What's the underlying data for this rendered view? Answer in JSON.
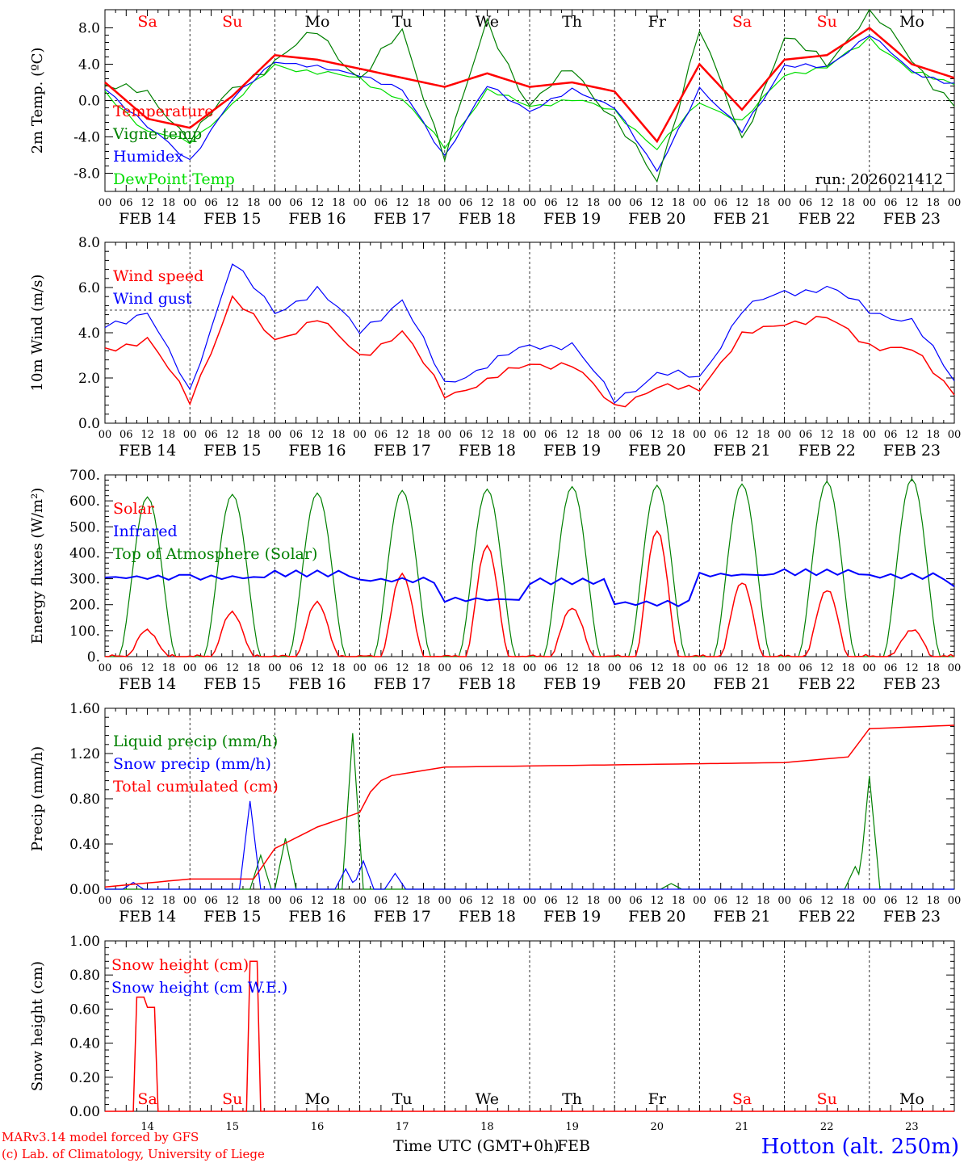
{
  "meta": {
    "model": "MARv3.14 model forced by GFS",
    "credit": "(c) Lab. of Climatology, University of Liege",
    "xlabel": "Time UTC (GMT+0h)",
    "month": "FEB",
    "station": "Hotton (alt. 250m)"
  },
  "colors": {
    "red": "#ff0000",
    "green": "#008000",
    "blue": "#0000ff",
    "lime": "#00dd00",
    "black": "#000000"
  },
  "days": {
    "weekdays": [
      "Sa",
      "Su",
      "Mo",
      "Tu",
      "We",
      "Th",
      "Fr",
      "Sa",
      "Su",
      "Mo"
    ],
    "weekend": [
      true,
      true,
      false,
      false,
      false,
      false,
      false,
      true,
      true,
      false
    ],
    "dates": [
      "FEB 14",
      "FEB 15",
      "FEB 16",
      "FEB 17",
      "FEB 18",
      "FEB 19",
      "FEB 20",
      "FEB 21",
      "FEB 22",
      "FEB 23"
    ],
    "day_numbers": [
      "14",
      "15",
      "16",
      "17",
      "18",
      "19",
      "20",
      "21",
      "22",
      "23"
    ],
    "hour_ticks": [
      "00",
      "06",
      "12",
      "18"
    ],
    "final_tick": "00"
  },
  "chart_data": [
    {
      "type": "line",
      "name": "temperature",
      "ylabel": "2m Temp. (ºC)",
      "ylim": [
        -10,
        10
      ],
      "yticks": [
        "8.0",
        "4.0",
        "0.0",
        "-4.0",
        "-8.0"
      ],
      "ytick_values": [
        8,
        4,
        0,
        -4,
        -8
      ],
      "reference_line": 0,
      "annotation": "run: 2026021412",
      "x_hours": [
        0,
        12,
        24,
        36,
        48,
        60,
        72,
        84,
        96,
        108,
        120,
        132,
        144,
        156,
        168,
        180,
        192,
        204,
        216,
        228,
        240
      ],
      "series": [
        {
          "name": "Temperature",
          "color": "#ff0000",
          "width": 2.5,
          "values": [
            2,
            -2,
            -3,
            0.5,
            5,
            4.5,
            3.5,
            2.5,
            1.5,
            3,
            1.5,
            2,
            1,
            -4.5,
            4,
            -1,
            4.5,
            5,
            8,
            4,
            2.5
          ]
        },
        {
          "name": "Vigne temp",
          "color": "#008000",
          "width": 1.2,
          "values": [
            2,
            0.5,
            -4,
            1,
            4.5,
            7.5,
            2.5,
            7.5,
            -6,
            8.5,
            -0.5,
            3.5,
            -2,
            -9,
            8,
            -4.5,
            7,
            4,
            10,
            4.5,
            -0.5
          ]
        },
        {
          "name": "Humidex",
          "color": "#0000ff",
          "width": 1.2,
          "values": [
            1.5,
            -3,
            -6.5,
            0,
            4.5,
            3.5,
            3,
            1,
            -6,
            1.5,
            -1,
            1,
            -0.5,
            -8,
            1.5,
            -3.5,
            4,
            3.5,
            7.5,
            3,
            2
          ]
        },
        {
          "name": "DewPoint Temp",
          "color": "#00dd00",
          "width": 1.2,
          "values": [
            1,
            -3.5,
            -4.5,
            -0.5,
            4,
            3,
            2.5,
            0,
            -5,
            1,
            -0.5,
            0,
            -1,
            -5.5,
            0,
            -2.5,
            3,
            3.5,
            7,
            3,
            2
          ]
        }
      ]
    },
    {
      "type": "line",
      "name": "wind",
      "ylabel": "10m Wind (m/s)",
      "ylim": [
        0,
        8
      ],
      "yticks": [
        "8.0",
        "6.0",
        "4.0",
        "2.0",
        "0.0"
      ],
      "ytick_values": [
        8,
        6,
        4,
        2,
        0
      ],
      "reference_line": 5,
      "x_hours": [
        0,
        12,
        24,
        36,
        48,
        60,
        72,
        84,
        96,
        108,
        120,
        132,
        144,
        156,
        168,
        180,
        192,
        204,
        216,
        228,
        240
      ],
      "series": [
        {
          "name": "Wind speed",
          "color": "#ff0000",
          "width": 1.5,
          "values": [
            3.3,
            3.7,
            1,
            5.5,
            3.7,
            4.6,
            3,
            4,
            1.3,
            1.8,
            2.7,
            2.5,
            0.8,
            1.5,
            1.6,
            3.8,
            4.5,
            4.6,
            3.5,
            3.2,
            1.4
          ]
        },
        {
          "name": "Wind gust",
          "color": "#0000ff",
          "width": 1.2,
          "values": [
            4.2,
            5,
            1.3,
            7.2,
            4.8,
            6,
            4,
            5.5,
            1.7,
            2.6,
            3.4,
            3.5,
            1,
            2.2,
            2,
            5,
            5.8,
            6,
            5,
            4.5,
            1.9
          ]
        }
      ]
    },
    {
      "type": "line",
      "name": "energy",
      "ylabel": "Energy fluxes (W/m²)",
      "ylim": [
        0,
        700
      ],
      "yticks": [
        "700.",
        "600.",
        "500.",
        "400.",
        "300.",
        "200.",
        "100.",
        "0."
      ],
      "ytick_values": [
        700,
        600,
        500,
        400,
        300,
        200,
        100,
        0
      ],
      "solar_peaks": [
        100,
        170,
        210,
        320,
        430,
        190,
        490,
        290,
        260,
        105
      ],
      "toa_peaks": [
        615,
        625,
        630,
        640,
        645,
        655,
        660,
        665,
        675,
        685
      ],
      "infrared": [
        {
          "day": 0,
          "value": 305
        },
        {
          "day": 1,
          "value": 305
        },
        {
          "day": 2,
          "value": 320
        },
        {
          "day": 3,
          "value": 295
        },
        {
          "day": 4,
          "value": 220
        },
        {
          "day": 5,
          "value": 290
        },
        {
          "day": 6,
          "value": 205
        },
        {
          "day": 7,
          "value": 315
        },
        {
          "day": 8,
          "value": 325
        },
        {
          "day": 9,
          "value": 310
        }
      ],
      "series_labels": [
        {
          "name": "Solar",
          "color": "#ff0000"
        },
        {
          "name": "Infrared",
          "color": "#0000ff"
        },
        {
          "name": "Top of Atmosphere (Solar)",
          "color": "#008000"
        }
      ]
    },
    {
      "type": "line",
      "name": "precip",
      "ylabel": "Precip (mm/h)",
      "ylim": [
        0,
        1.6
      ],
      "yticks": [
        "1.60",
        "1.20",
        "0.80",
        "0.40",
        "0.00"
      ],
      "ytick_values": [
        1.6,
        1.2,
        0.8,
        0.4,
        0
      ],
      "x_hours": [
        0,
        24,
        42,
        48,
        60,
        72,
        76,
        80,
        96,
        120,
        144,
        168,
        192,
        210,
        216,
        240
      ],
      "series": [
        {
          "name": "Liquid precip (mm/h)",
          "color": "#008000",
          "width": 1.2,
          "spikes": [
            {
              "hour": 44,
              "value": 0.3
            },
            {
              "hour": 51,
              "value": 0.45
            },
            {
              "hour": 70,
              "value": 1.38
            },
            {
              "hour": 160,
              "value": 0.05
            },
            {
              "hour": 212,
              "value": 0.2
            },
            {
              "hour": 216,
              "value": 1.0
            }
          ]
        },
        {
          "name": "Snow precip (mm/h)",
          "color": "#0000ff",
          "width": 1.2,
          "spikes": [
            {
              "hour": 8,
              "value": 0.06
            },
            {
              "hour": 41,
              "value": 0.78
            },
            {
              "hour": 68,
              "value": 0.18
            },
            {
              "hour": 73,
              "value": 0.25
            },
            {
              "hour": 82,
              "value": 0.14
            }
          ]
        },
        {
          "name": "Total cumulated (cm)",
          "color": "#ff0000",
          "width": 1.5,
          "values": [
            0.02,
            0.09,
            0.09,
            0.36,
            0.55,
            0.68,
            0.92,
            1.0,
            1.08,
            1.09,
            1.1,
            1.11,
            1.12,
            1.17,
            1.42,
            1.45
          ]
        }
      ]
    },
    {
      "type": "line",
      "name": "snow",
      "ylabel": "Snow height (cm)",
      "ylim": [
        0,
        1
      ],
      "yticks": [
        "1.00",
        "0.80",
        "0.60",
        "0.40",
        "0.20",
        "0.00"
      ],
      "ytick_values": [
        1,
        0.8,
        0.6,
        0.4,
        0.2,
        0
      ],
      "series": [
        {
          "name": "Snow height (cm)",
          "color": "#ff0000",
          "width": 1.5,
          "spikes": [
            {
              "hour": 10,
              "value": 0.67
            },
            {
              "hour": 13,
              "value": 0.61
            },
            {
              "hour": 42,
              "value": 0.88
            }
          ]
        },
        {
          "name": "Snow height (cm W.E.)",
          "color": "#0000ff",
          "width": 1.2,
          "spikes": []
        }
      ]
    }
  ]
}
